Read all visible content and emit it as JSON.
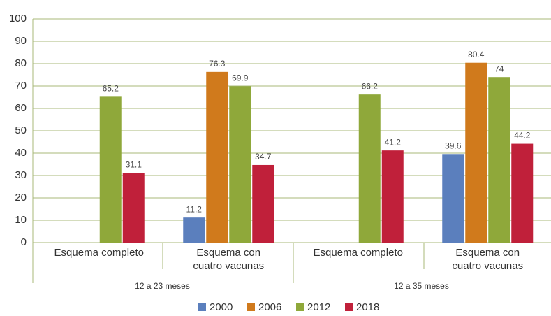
{
  "chart_data": {
    "type": "bar",
    "groups": [
      "12 a 23 meses",
      "12 a 35 meses"
    ],
    "categories": [
      "Esquema completo",
      "Esquema con\ncuatro vacunas",
      "Esquema completo",
      "Esquema con\ncuatro vacunas"
    ],
    "series": [
      {
        "name": "2000",
        "color": "#5b7fbd",
        "values": [
          null,
          11.2,
          null,
          39.6
        ]
      },
      {
        "name": "2006",
        "color": "#d07a1c",
        "values": [
          null,
          76.3,
          null,
          80.4
        ]
      },
      {
        "name": "2012",
        "color": "#8fa83a",
        "values": [
          65.2,
          69.9,
          66.2,
          74
        ]
      },
      {
        "name": "2018",
        "color": "#c0203a",
        "values": [
          31.1,
          34.7,
          41.2,
          44.2
        ]
      }
    ],
    "ylim": [
      0,
      100
    ],
    "yticks": [
      0,
      10,
      20,
      30,
      40,
      50,
      60,
      70,
      80,
      90,
      100
    ],
    "grid": true,
    "legend": "bottom"
  }
}
